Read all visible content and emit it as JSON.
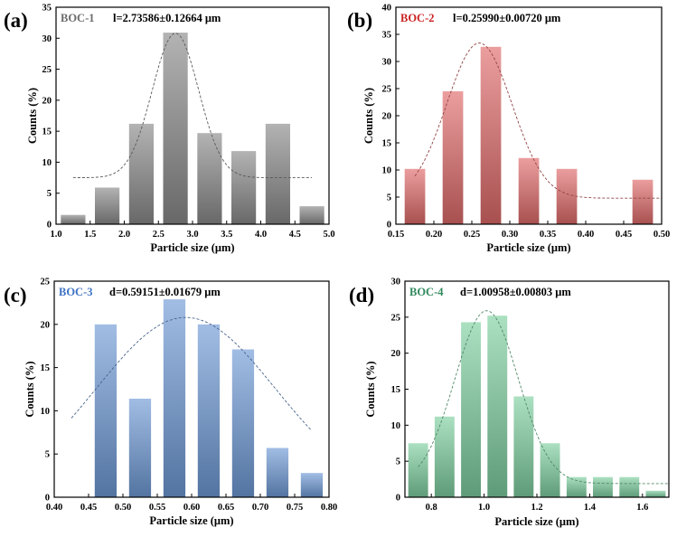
{
  "chart_data": [
    {
      "type": "bar",
      "panel": "(a)",
      "sample": "BOC-1",
      "size_text": "l=2.73586±0.12664 μm",
      "xlabel": "Particle size (μm)",
      "ylabel": "Counts (%)",
      "xlim": [
        1.0,
        5.0
      ],
      "ylim": [
        0,
        35
      ],
      "xticks": [
        "1.0",
        "1.5",
        "2.0",
        "2.5",
        "3.0",
        "3.5",
        "4.0",
        "4.5",
        "5.0"
      ],
      "yticks": [
        "0",
        "5",
        "10",
        "15",
        "20",
        "25",
        "30",
        "35"
      ],
      "bin_width": 0.36,
      "x": [
        1.25,
        1.75,
        2.25,
        2.75,
        3.25,
        3.75,
        4.25,
        4.75
      ],
      "values": [
        1.5,
        5.9,
        16.2,
        30.9,
        14.7,
        11.8,
        16.2,
        2.9
      ],
      "fit": {
        "x0": 2.75,
        "y0": 7.5,
        "A": 23.3,
        "w": 0.34,
        "xmin": 1.25,
        "xmax": 4.75
      },
      "color": "#8a8a8a",
      "label_color": "#6b6b6b"
    },
    {
      "type": "bar",
      "panel": "(b)",
      "sample": "BOC-2",
      "size_text": "l=0.25990±0.00720 μm",
      "xlabel": "Particle size (μm)",
      "ylabel": "Counts (%)",
      "xlim": [
        0.15,
        0.5
      ],
      "ylim": [
        0,
        40
      ],
      "xticks": [
        "0.15",
        "0.20",
        "0.25",
        "0.30",
        "0.35",
        "0.40",
        "0.45",
        "0.50"
      ],
      "yticks": [
        "0",
        "5",
        "10",
        "15",
        "20",
        "25",
        "30",
        "35",
        "40"
      ],
      "bin_width": 0.027,
      "x": [
        0.175,
        0.225,
        0.275,
        0.325,
        0.375,
        0.475
      ],
      "values": [
        10.2,
        24.5,
        32.7,
        12.2,
        10.2,
        8.2
      ],
      "fit": {
        "x0": 0.2599,
        "y0": 4.8,
        "A": 28.6,
        "w": 0.043,
        "xmin": 0.175,
        "xmax": 0.5
      },
      "color": "#e06a6a",
      "label_color": "#cc2222"
    },
    {
      "type": "bar",
      "panel": "(c)",
      "sample": "BOC-3",
      "size_text": "d=0.59151±0.01679 μm",
      "xlabel": "Particle size (μm)",
      "ylabel": "Counts (%)",
      "xlim": [
        0.4,
        0.8
      ],
      "ylim": [
        0,
        25
      ],
      "xticks": [
        "0.40",
        "0.45",
        "0.50",
        "0.55",
        "0.60",
        "0.65",
        "0.70",
        "0.75",
        "0.80"
      ],
      "yticks": [
        "0",
        "5",
        "10",
        "15",
        "20",
        "25"
      ],
      "bin_width": 0.032,
      "x": [
        0.475,
        0.525,
        0.575,
        0.625,
        0.675,
        0.725,
        0.775
      ],
      "values": [
        20.0,
        11.4,
        22.9,
        20.0,
        17.1,
        5.7,
        2.8
      ],
      "fit": {
        "x0": 0.5915,
        "y0": 0,
        "A": 20.8,
        "w": 0.13,
        "xmin": 0.425,
        "xmax": 0.775
      },
      "color": "#6e9ad6",
      "label_color": "#3d72c4"
    },
    {
      "type": "bar",
      "panel": "(d)",
      "sample": "BOC-4",
      "size_text": "d=1.00958±0.00803 μm",
      "xlabel": "Particle size (μm)",
      "ylabel": "Counts (%)",
      "xlim": [
        0.7,
        1.7
      ],
      "ylim": [
        0,
        30
      ],
      "xticks": [
        "0.8",
        "1.0",
        "1.2",
        "1.4",
        "1.6"
      ],
      "yticks": [
        "0",
        "5",
        "10",
        "15",
        "20",
        "25",
        "30"
      ],
      "bin_width": 0.075,
      "x": [
        0.75,
        0.85,
        0.95,
        1.05,
        1.15,
        1.25,
        1.35,
        1.45,
        1.55,
        1.65
      ],
      "values": [
        7.5,
        11.2,
        24.3,
        25.2,
        14.0,
        7.5,
        2.8,
        2.8,
        2.8,
        0.9
      ],
      "fit": {
        "x0": 1.0096,
        "y0": 1.9,
        "A": 24.0,
        "w": 0.12,
        "xmin": 0.75,
        "xmax": 1.7
      },
      "color": "#7dcfa0",
      "label_color": "#2f8a5c"
    }
  ]
}
